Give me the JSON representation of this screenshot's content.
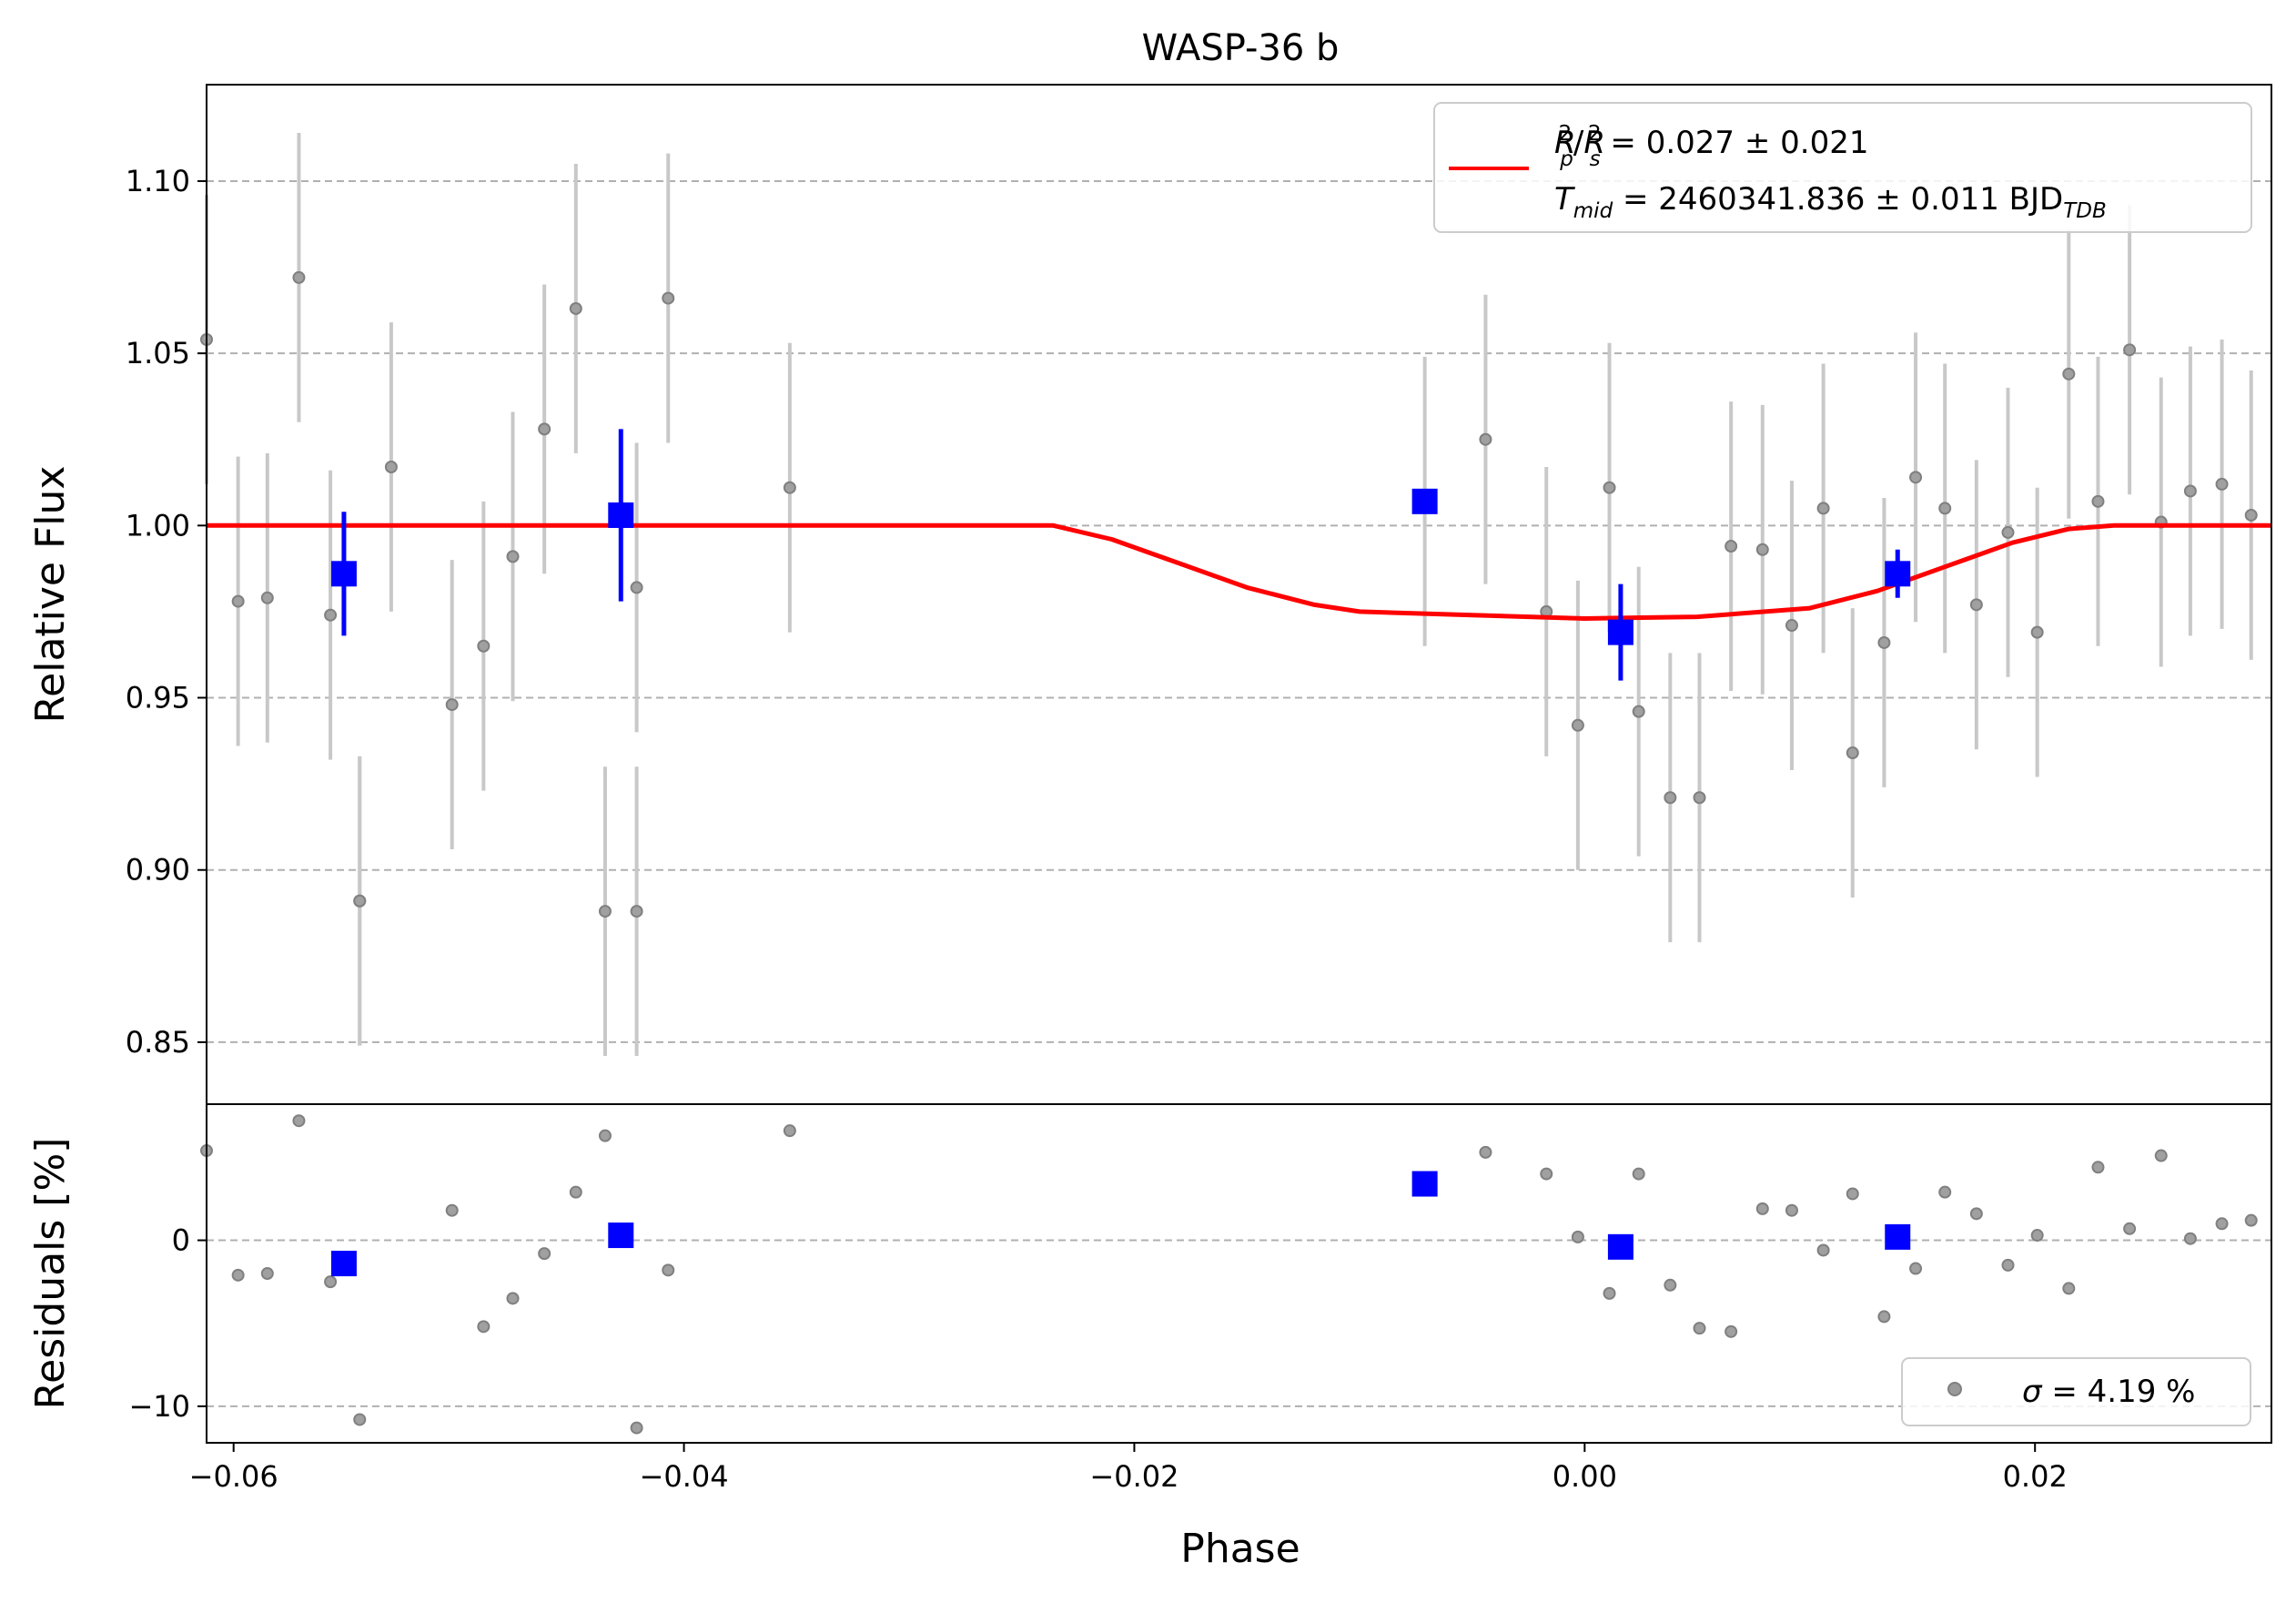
{
  "chart_data": [
    {
      "type": "scatter",
      "panel": "light-curve",
      "title": "WASP-36 b",
      "xlabel": "",
      "ylabel": "Relative Flux",
      "xlim": [
        -0.0612,
        0.0305
      ],
      "ylim": [
        0.832,
        1.128
      ],
      "yticks": [
        0.85,
        0.9,
        0.95,
        1.0,
        1.05,
        1.1
      ],
      "ytick_labels": [
        "0.85",
        "0.90",
        "0.95",
        "1.00",
        "1.05",
        "1.10"
      ],
      "grid": "horizontal-dashed",
      "legend_position": "top-right",
      "legend": {
        "line1": {
          "a": "R",
          "a_sup": "2",
          "a_sub": "p",
          "slash": "/",
          "b": "R",
          "b_sup": "2",
          "b_sub": "s",
          "rest": " = 0.027 ± 0.021"
        },
        "line2": {
          "a": "T",
          "a_sub": "mid",
          "rest": " = 2460341.836 ± 0.011 BJD",
          "rest_sub": "TDB"
        }
      },
      "colors": {
        "data": "#808080",
        "error": "#c8c8c8",
        "binned": "#0000ff",
        "model": "#ff0000"
      },
      "series": [
        {
          "kind": "data-points",
          "x": [
            -0.0612,
            -0.0598,
            -0.0585,
            -0.0571,
            -0.0557,
            -0.0544,
            -0.053,
            -0.0503,
            -0.0489,
            -0.0476,
            -0.0462,
            -0.0448,
            -0.0435,
            -0.0421,
            -0.0407,
            -0.0353,
            -0.0017,
            -0.0003,
            0.0011,
            0.0024,
            0.0038,
            0.0051,
            0.0065,
            0.0079,
            0.0092,
            0.0106,
            0.0119,
            0.0133,
            0.0147,
            0.016,
            0.0174,
            0.0188,
            0.0201,
            0.0215,
            0.0228,
            0.0242,
            0.0256,
            0.0269,
            0.0283,
            0.0296,
            0.031
          ],
          "y": [
            1.054,
            0.978,
            0.979,
            1.072,
            0.974,
            0.891,
            1.017,
            0.948,
            0.965,
            0.991,
            1.028,
            1.063,
            0.888,
            0.982,
            1.066,
            1.011,
            0.975,
            0.942,
            1.011,
            0.946,
            0.921,
            0.921,
            0.994,
            0.993,
            0.971,
            1.005,
            0.934,
            0.966,
            1.014,
            1.005,
            0.977,
            0.998,
            0.969,
            1.044,
            1.007,
            1.051,
            1.001,
            1.01,
            1.012,
            1.003,
            1.01
          ],
          "yerr": [
            0.042,
            0.042,
            0.042,
            0.042,
            0.042,
            0.042,
            0.042,
            0.042,
            0.042,
            0.042,
            0.042,
            0.042,
            0.042,
            0.042,
            0.042,
            0.042,
            0.042,
            0.042,
            0.042,
            0.042,
            0.042,
            0.042,
            0.042,
            0.042,
            0.042,
            0.042,
            0.042,
            0.042,
            0.042,
            0.042,
            0.042,
            0.042,
            0.042,
            0.042,
            0.042,
            0.042,
            0.042,
            0.042,
            0.042,
            0.042,
            0.042
          ],
          "extra_x": [
            -0.0544,
            -0.0421,
            -0.0071,
            -0.0044
          ],
          "extra_y": [
            0.891,
            0.888,
            1.007,
            1.025
          ],
          "extra_yerr": [
            0.042,
            0.042,
            0.042,
            0.042
          ]
        },
        {
          "kind": "binned",
          "x": [
            -0.0551,
            -0.0428,
            -0.0071,
            0.0016,
            0.0139
          ],
          "y": [
            0.986,
            1.003,
            1.007,
            0.969,
            0.986
          ],
          "yerr": [
            0.018,
            0.025,
            0.0,
            0.014,
            0.007
          ]
        },
        {
          "kind": "model",
          "x": [
            -0.0612,
            -0.0236,
            -0.021,
            -0.018,
            -0.015,
            -0.012,
            -0.01,
            -0.005,
            0.0,
            0.005,
            0.01,
            0.013,
            0.016,
            0.019,
            0.0215,
            0.0235,
            0.0305
          ],
          "y": [
            1.0,
            1.0,
            0.996,
            0.989,
            0.982,
            0.977,
            0.975,
            0.974,
            0.973,
            0.9735,
            0.976,
            0.981,
            0.988,
            0.995,
            0.999,
            1.0,
            1.0
          ]
        }
      ]
    },
    {
      "type": "scatter",
      "panel": "residuals",
      "xlabel": "Phase",
      "ylabel": "Residuals [%]",
      "xlim": [
        -0.0612,
        0.0305
      ],
      "ylim": [
        -12.2,
        8.2
      ],
      "xticks": [
        -0.06,
        -0.04,
        -0.02,
        0.0,
        0.02
      ],
      "xtick_labels": [
        "−0.06",
        "−0.04",
        "−0.02",
        "0.00",
        "0.02"
      ],
      "yticks": [
        -10,
        0
      ],
      "ytick_labels": [
        "−10",
        "0"
      ],
      "grid": "horizontal-dashed",
      "legend_position": "bottom-right",
      "legend": {
        "sigma": "σ",
        "rest": " = 4.19 %"
      },
      "series": [
        {
          "kind": "residual-points",
          "x": [
            -0.0612,
            -0.0598,
            -0.0585,
            -0.0571,
            -0.0557,
            -0.0544,
            -0.0503,
            -0.0489,
            -0.0476,
            -0.0462,
            -0.0448,
            -0.0435,
            -0.0421,
            -0.0407,
            -0.0353,
            -0.0044,
            -0.0017,
            -0.0003,
            0.0011,
            0.0024,
            0.0038,
            0.0051,
            0.0065,
            0.0079,
            0.0092,
            0.0106,
            0.0119,
            0.0133,
            0.0147,
            0.016,
            0.0174,
            0.0188,
            0.0201,
            0.0215,
            0.0228,
            0.0242,
            0.0256,
            0.0269,
            0.0283,
            0.0296,
            0.031
          ],
          "y": [
            5.4,
            -2.1,
            -2.0,
            7.2,
            -2.5,
            -10.8,
            1.8,
            -5.2,
            -3.5,
            -0.8,
            2.9,
            6.3,
            -11.3,
            -1.8,
            6.6,
            5.3,
            4.0,
            0.2,
            -3.2,
            4.0,
            -2.7,
            -5.3,
            -5.5,
            1.9,
            1.8,
            -0.6,
            2.8,
            -4.6,
            -1.7,
            2.9,
            1.6,
            -1.5,
            0.3,
            -2.9,
            4.4,
            0.7,
            5.1,
            0.1,
            1.0,
            1.2,
            0.3
          ]
        },
        {
          "kind": "binned",
          "x": [
            -0.0551,
            -0.0428,
            -0.0071,
            0.0016,
            0.0139
          ],
          "y": [
            -1.4,
            0.3,
            3.4,
            -0.4,
            0.2
          ]
        }
      ]
    }
  ]
}
